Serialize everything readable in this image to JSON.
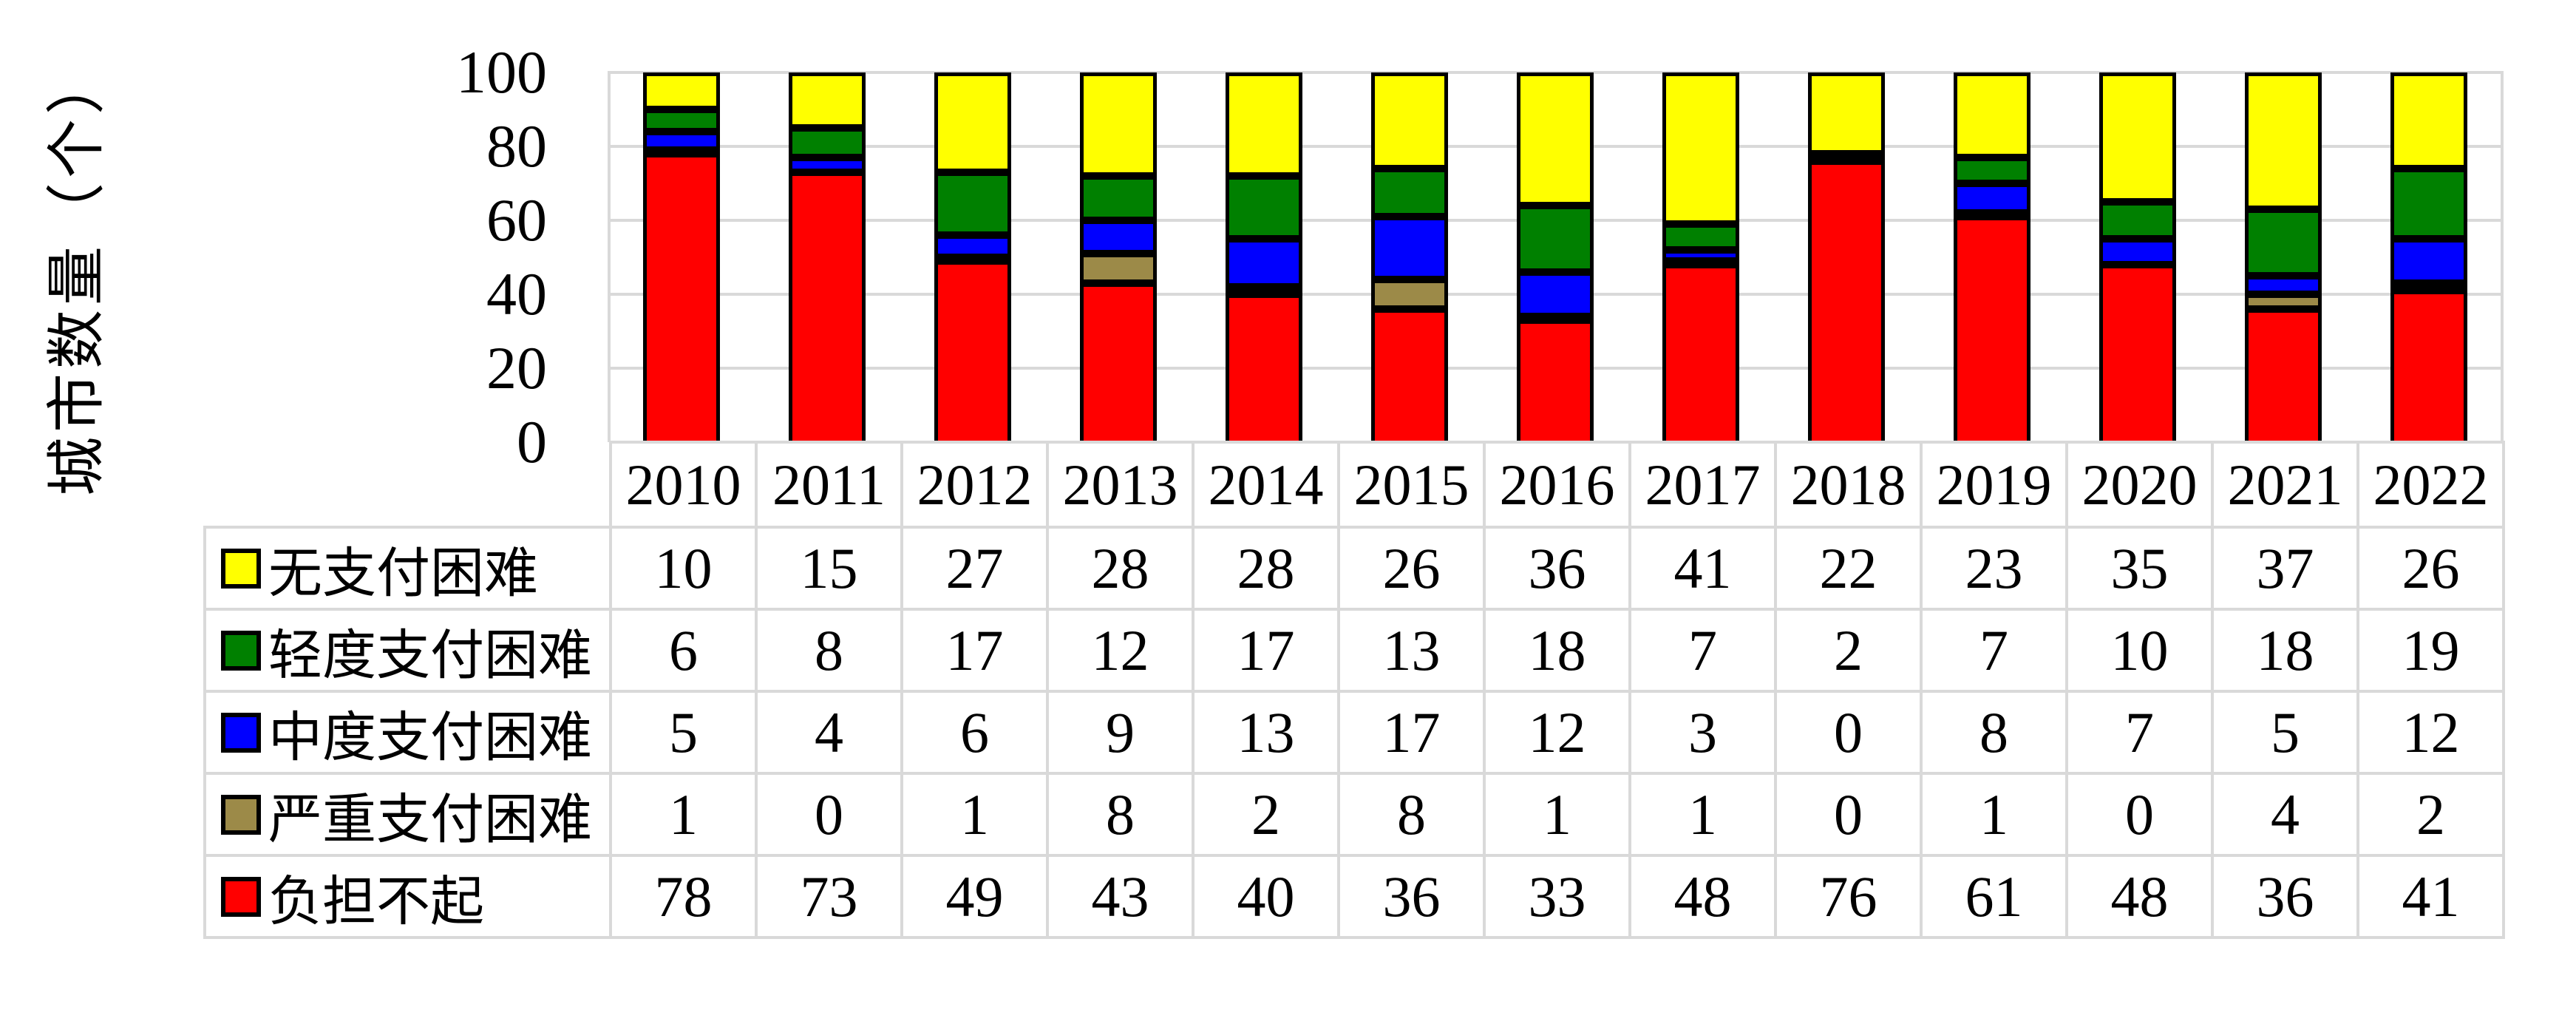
{
  "chart_data": {
    "type": "bar",
    "stacked": true,
    "percent_total": 100,
    "title": "",
    "xlabel": "",
    "ylabel": "城市数量（个）",
    "ylim": [
      0,
      100
    ],
    "yticks": [
      0,
      20,
      40,
      60,
      80,
      100
    ],
    "grid": true,
    "legend_position": "table-left",
    "categories": [
      "2010",
      "2011",
      "2012",
      "2013",
      "2014",
      "2015",
      "2016",
      "2017",
      "2018",
      "2019",
      "2020",
      "2021",
      "2022"
    ],
    "series": [
      {
        "name": "无支付困难",
        "color": "#FFFF00",
        "values": [
          10,
          15,
          27,
          28,
          28,
          26,
          36,
          41,
          22,
          23,
          35,
          37,
          26
        ]
      },
      {
        "name": "轻度支付困难",
        "color": "#008000",
        "values": [
          6,
          8,
          17,
          12,
          17,
          13,
          18,
          7,
          2,
          7,
          10,
          18,
          19
        ]
      },
      {
        "name": "中度支付困难",
        "color": "#0000FF",
        "values": [
          5,
          4,
          6,
          9,
          13,
          17,
          12,
          3,
          0,
          8,
          7,
          5,
          12
        ]
      },
      {
        "name": "严重支付困难",
        "color": "#9C8A48",
        "values": [
          1,
          0,
          1,
          8,
          2,
          8,
          1,
          1,
          0,
          1,
          0,
          4,
          2
        ]
      },
      {
        "name": "负担不起",
        "color": "#FF0000",
        "values": [
          78,
          73,
          49,
          43,
          40,
          36,
          33,
          48,
          76,
          61,
          48,
          36,
          41
        ]
      }
    ],
    "colors": {
      "gridline": "#D9D9D9",
      "bar_border": "#000000",
      "table_border": "#D9D9D9",
      "background": "#FFFFFF"
    }
  }
}
